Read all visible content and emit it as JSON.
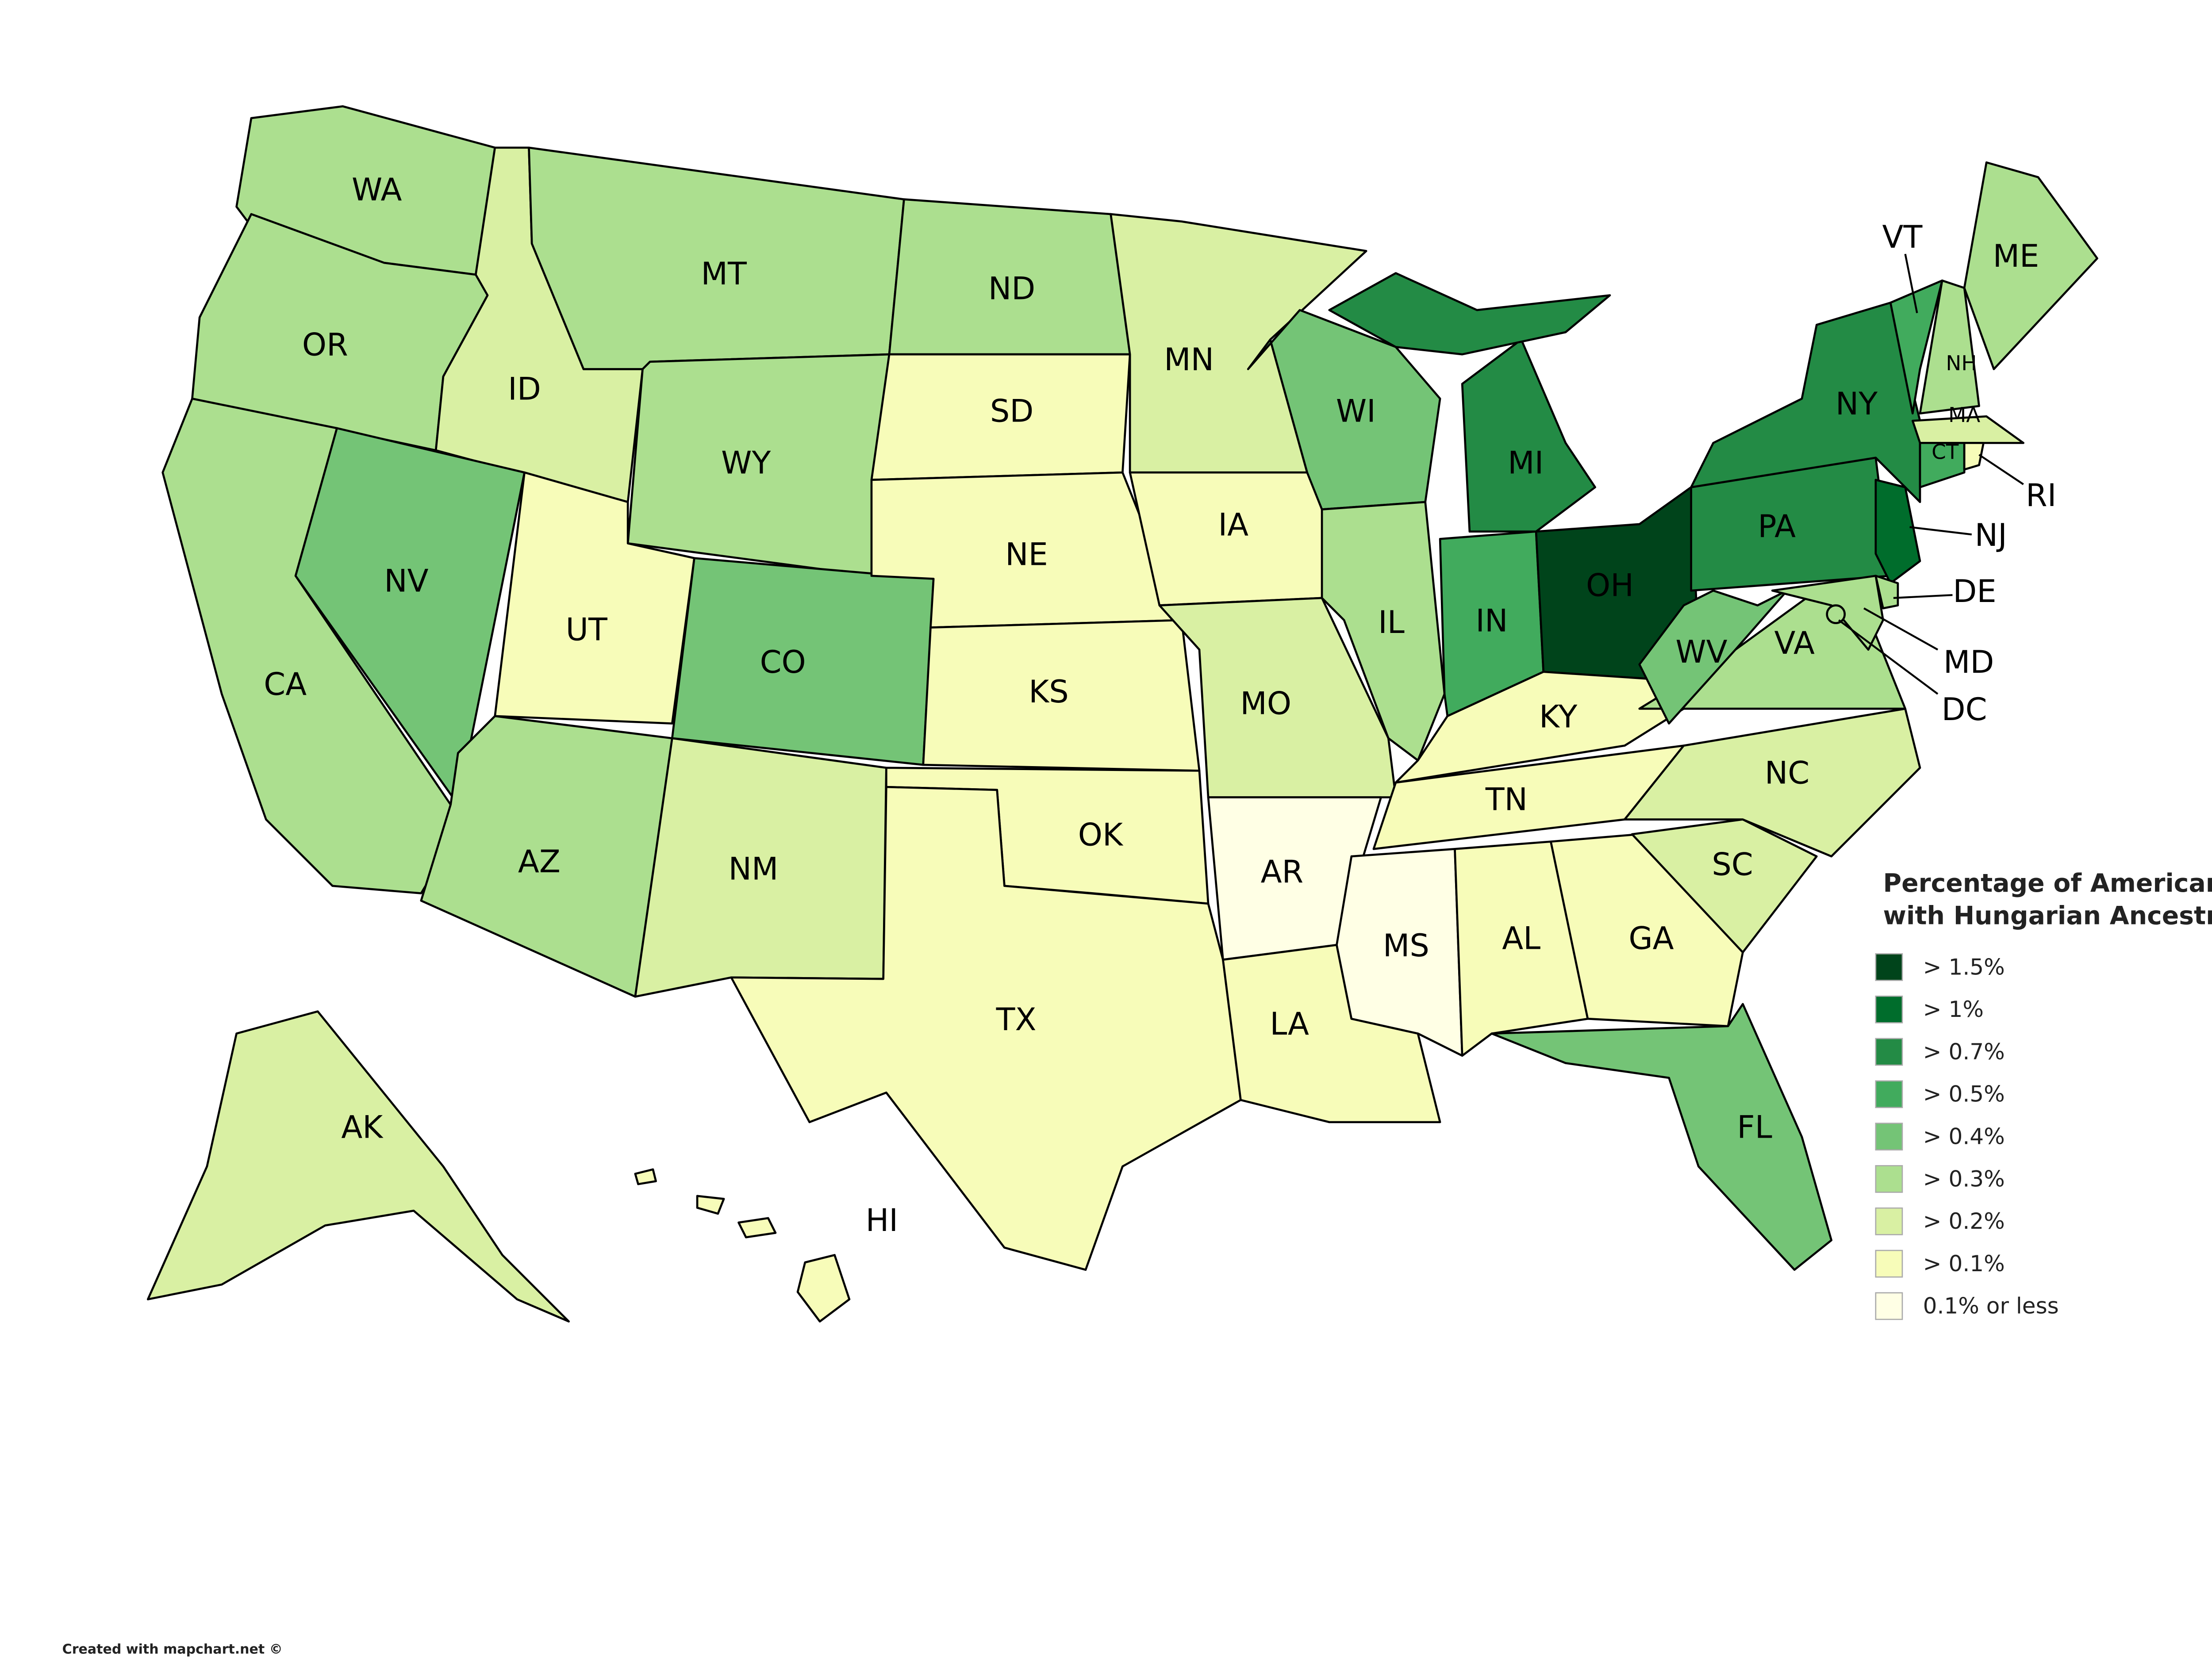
{
  "title": "Percentage of Americans with Hungarian Ancestry:",
  "credit": "Created with mapchart.net ©",
  "legend": [
    {
      "label": "> 1.5%",
      "color": "#00441b"
    },
    {
      "label": "> 1%",
      "color": "#006d2c"
    },
    {
      "label": "> 0.7%",
      "color": "#238b45"
    },
    {
      "label": "> 0.5%",
      "color": "#41ab5d"
    },
    {
      "label": "> 0.4%",
      "color": "#74c476"
    },
    {
      "label": "> 0.3%",
      "color": "#acdf8f"
    },
    {
      "label": "> 0.2%",
      "color": "#d9f0a3"
    },
    {
      "label": "> 0.1%",
      "color": "#f7fcb9"
    },
    {
      "label": "0.1% or less",
      "color": "#ffffe5"
    }
  ],
  "states": [
    {
      "label": "WA",
      "color": "#acdf8f"
    },
    {
      "label": "OR",
      "color": "#acdf8f"
    },
    {
      "label": "CA",
      "color": "#acdf8f"
    },
    {
      "label": "ID",
      "color": "#d9f0a3"
    },
    {
      "label": "NV",
      "color": "#74c476"
    },
    {
      "label": "MT",
      "color": "#acdf8f"
    },
    {
      "label": "WY",
      "color": "#acdf8f"
    },
    {
      "label": "UT",
      "color": "#f7fcb9"
    },
    {
      "label": "AZ",
      "color": "#acdf8f"
    },
    {
      "label": "CO",
      "color": "#74c476"
    },
    {
      "label": "NM",
      "color": "#d9f0a3"
    },
    {
      "label": "ND",
      "color": "#acdf8f"
    },
    {
      "label": "SD",
      "color": "#f7fcb9"
    },
    {
      "label": "NE",
      "color": "#f7fcb9"
    },
    {
      "label": "KS",
      "color": "#f7fcb9"
    },
    {
      "label": "OK",
      "color": "#f7fcb9"
    },
    {
      "label": "TX",
      "color": "#f7fcb9"
    },
    {
      "label": "MN",
      "color": "#d9f0a3"
    },
    {
      "label": "IA",
      "color": "#f7fcb9"
    },
    {
      "label": "MO",
      "color": "#d9f0a3"
    },
    {
      "label": "AR",
      "color": "#ffffe5"
    },
    {
      "label": "LA",
      "color": "#f7fcb9"
    },
    {
      "label": "WI",
      "color": "#74c476"
    },
    {
      "label": "IL",
      "color": "#acdf8f"
    },
    {
      "label": "MI",
      "color": "#238b45"
    },
    {
      "label": "IN",
      "color": "#41ab5d"
    },
    {
      "label": "OH",
      "color": "#00441b"
    },
    {
      "label": "KY",
      "color": "#f7fcb9"
    },
    {
      "label": "TN",
      "color": "#f7fcb9"
    },
    {
      "label": "MS",
      "color": "#ffffe5"
    },
    {
      "label": "AL",
      "color": "#f7fcb9"
    },
    {
      "label": "GA",
      "color": "#f7fcb9"
    },
    {
      "label": "FL",
      "color": "#74c476"
    },
    {
      "label": "SC",
      "color": "#d9f0a3"
    },
    {
      "label": "NC",
      "color": "#d9f0a3"
    },
    {
      "label": "VA",
      "color": "#acdf8f"
    },
    {
      "label": "WV",
      "color": "#74c476"
    },
    {
      "label": "PA",
      "color": "#238b45"
    },
    {
      "label": "NY",
      "color": "#238b45"
    },
    {
      "label": "NJ",
      "color": "#006d2c"
    },
    {
      "label": "DE",
      "color": "#acdf8f"
    },
    {
      "label": "MD",
      "color": "#acdf8f"
    },
    {
      "label": "DC",
      "color": "#acdf8f"
    },
    {
      "label": "VT",
      "color": "#41ab5d"
    },
    {
      "label": "NH",
      "color": "#acdf8f"
    },
    {
      "label": "ME",
      "color": "#acdf8f"
    },
    {
      "label": "MA",
      "color": "#d9f0a3"
    },
    {
      "label": "CT",
      "color": "#41ab5d"
    },
    {
      "label": "RI",
      "color": "#f7fcb9"
    },
    {
      "label": "AK",
      "color": "#d9f0a3"
    },
    {
      "label": "HI",
      "color": "#f7fcb9"
    }
  ]
}
